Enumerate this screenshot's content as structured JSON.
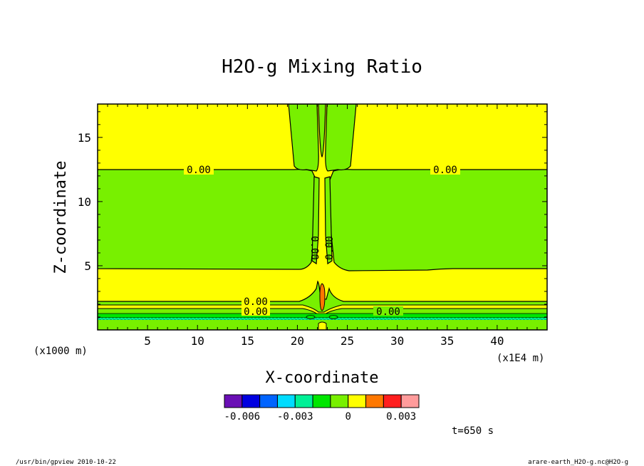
{
  "chart_data": {
    "type": "contour",
    "title": "H2O-g Mixing Ratio",
    "xlabel": "X-coordinate",
    "ylabel": "Z-coordinate",
    "x_unit_left": "(x1000 m)",
    "x_unit_right": "(x1E4 m)",
    "xlim": [
      0,
      45
    ],
    "ylim": [
      0,
      17.6
    ],
    "x_ticks": [
      "5",
      "10",
      "15",
      "20",
      "25",
      "30",
      "35",
      "40"
    ],
    "x_tick_values": [
      5,
      10,
      15,
      20,
      25,
      30,
      35,
      40
    ],
    "y_ticks": [
      "5",
      "10",
      "15"
    ],
    "y_tick_values": [
      5,
      10,
      15
    ],
    "contour_label": "0.00",
    "time_label": "t=650 s",
    "colorbar": {
      "colors": [
        "#6a0fb5",
        "#0000e0",
        "#0064ff",
        "#00dcff",
        "#00f096",
        "#00e600",
        "#78f000",
        "#ffff00",
        "#ff7800",
        "#ff1e1e",
        "#ff9b9b"
      ],
      "labels": [
        "-0.006",
        "-0.003",
        "0",
        "0.003"
      ]
    },
    "level_colors": {
      "positive": "#ffff00",
      "near_zero": "#78f000",
      "max": "#ff7800",
      "negative_a": "#00e600",
      "negative_b": "#00f096"
    }
  },
  "footer": {
    "left": "/usr/bin/gpview   2010-10-22",
    "right": "arare-earth_H2O-g.nc@H2O-g"
  }
}
